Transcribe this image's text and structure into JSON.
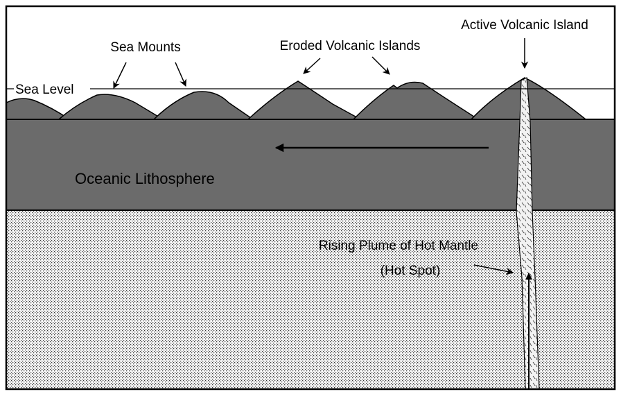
{
  "labels": {
    "sea_mounts": "Sea Mounts",
    "eroded_islands": "Eroded Volcanic Islands",
    "active_island": "Active Volcanic Island",
    "sea_level": "Sea Level",
    "lithosphere": "Oceanic Lithosphere",
    "plume": "Rising Plume of Hot Mantle",
    "hot_spot": "(Hot Spot)"
  }
}
